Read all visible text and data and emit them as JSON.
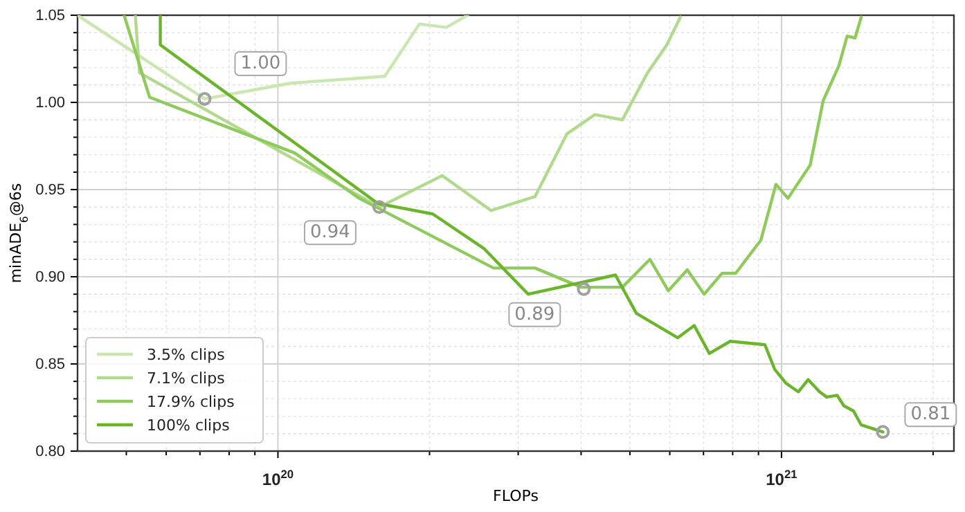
{
  "chart_data": {
    "type": "line",
    "xlabel": "FLOPs",
    "ylabel": "minADE$_{6}$@6s",
    "log": "x",
    "grid": true,
    "legend": "bottom left",
    "line_style": "solid",
    "marker": "none",
    "xlim": [
      4e+19,
      2.2e+21
    ],
    "ylim": [
      0.8,
      1.05
    ],
    "xticks": [
      {
        "value": 5e+19,
        "label": null
      },
      {
        "value": 6e+19,
        "label": null
      },
      {
        "value": 7e+19,
        "label": null
      },
      {
        "value": 8e+19,
        "label": null
      },
      {
        "value": 9e+19,
        "label": null
      },
      {
        "value": 1e+20,
        "label": "10$^{20}$"
      },
      {
        "value": 2e+20,
        "label": null
      },
      {
        "value": 3e+20,
        "label": null
      },
      {
        "value": 4e+20,
        "label": null
      },
      {
        "value": 5e+20,
        "label": null
      },
      {
        "value": 6e+20,
        "label": null
      },
      {
        "value": 7e+20,
        "label": null
      },
      {
        "value": 8e+20,
        "label": null
      },
      {
        "value": 9e+20,
        "label": null
      },
      {
        "value": 1e+21,
        "label": "10$^{21}$"
      },
      {
        "value": 2e+21,
        "label": null
      }
    ],
    "yticks": [
      {
        "value": 0.8,
        "label": "0.80"
      },
      {
        "value": 0.81,
        "label": null
      },
      {
        "value": 0.82,
        "label": null
      },
      {
        "value": 0.83,
        "label": null
      },
      {
        "value": 0.84,
        "label": null
      },
      {
        "value": 0.85,
        "label": "0.85"
      },
      {
        "value": 0.86,
        "label": null
      },
      {
        "value": 0.87,
        "label": null
      },
      {
        "value": 0.88,
        "label": null
      },
      {
        "value": 0.89,
        "label": null
      },
      {
        "value": 0.9,
        "label": "0.90"
      },
      {
        "value": 0.91,
        "label": null
      },
      {
        "value": 0.92,
        "label": null
      },
      {
        "value": 0.93,
        "label": null
      },
      {
        "value": 0.94,
        "label": null
      },
      {
        "value": 0.95,
        "label": "0.95"
      },
      {
        "value": 0.96,
        "label": null
      },
      {
        "value": 0.97,
        "label": null
      },
      {
        "value": 0.98,
        "label": null
      },
      {
        "value": 0.99,
        "label": null
      },
      {
        "value": 1.0,
        "label": "1.00"
      },
      {
        "value": 1.01,
        "label": null
      },
      {
        "value": 1.02,
        "label": null
      },
      {
        "value": 1.03,
        "label": null
      },
      {
        "value": 1.04,
        "label": null
      },
      {
        "value": 1.05,
        "label": "1.05"
      }
    ],
    "series": [
      {
        "name": "3.5% clips",
        "color": "#cce6b0",
        "x": [
          4e+19,
          7.15e+19,
          1.06e+20,
          1.63e+20,
          1.91e+20,
          2.16e+20,
          2.38e+20
        ],
        "values": [
          1.05,
          1.002,
          1.011,
          1.015,
          1.045,
          1.043,
          1.05
        ]
      },
      {
        "name": "7.1% clips",
        "color": "#b2da8c",
        "x": [
          5.21e+19,
          5.31e+19,
          1.59e+20,
          2.12e+20,
          2.65e+20,
          3.24e+20,
          3.75e+20,
          4.26e+20,
          4.83e+20,
          5.42e+20,
          5.92e+20,
          6.3e+20
        ],
        "values": [
          1.05,
          1.017,
          0.94,
          0.958,
          0.938,
          0.946,
          0.982,
          0.993,
          0.99,
          1.017,
          1.033,
          1.049
        ]
      },
      {
        "name": "17.9% clips",
        "color": "#8fca5c",
        "x": [
          4.95e+19,
          5.56e+19,
          1.08e+20,
          1.45e+20,
          2.68e+20,
          3.24e+20,
          4e+20,
          4.83e+20,
          5.48e+20,
          5.96e+20,
          6.5e+20,
          7.02e+20,
          7.62e+20,
          8.11e+20,
          9.1e+20,
          9.75e+20,
          1.03e+21,
          1.14e+21,
          1.21e+21,
          1.3e+21,
          1.35e+21,
          1.4e+21,
          1.44e+21
        ],
        "values": [
          1.05,
          1.003,
          0.971,
          0.945,
          0.905,
          0.905,
          0.894,
          0.894,
          0.91,
          0.892,
          0.904,
          0.89,
          0.902,
          0.902,
          0.921,
          0.953,
          0.945,
          0.964,
          1.001,
          1.021,
          1.038,
          1.037,
          1.049
        ]
      },
      {
        "name": "100% clips",
        "color": "#6ab52c",
        "x": [
          5.84e+19,
          5.84e+19,
          1.58e+20,
          2.03e+20,
          2.57e+20,
          3.14e+20,
          4.68e+20,
          5.15e+20,
          6.22e+20,
          6.71e+20,
          7.19e+20,
          7.91e+20,
          9.27e+20,
          9.69e+20,
          1.02e+21,
          1.08e+21,
          1.13e+21,
          1.19e+21,
          1.23e+21,
          1.29e+21,
          1.33e+21,
          1.39e+21,
          1.44e+21,
          1.59e+21
        ],
        "values": [
          1.05,
          1.033,
          0.942,
          0.936,
          0.916,
          0.89,
          0.901,
          0.879,
          0.865,
          0.872,
          0.856,
          0.863,
          0.861,
          0.847,
          0.839,
          0.834,
          0.841,
          0.834,
          0.831,
          0.832,
          0.826,
          0.823,
          0.815,
          0.811
        ]
      }
    ],
    "annotations": [
      {
        "text": "1.00",
        "x": 7.15e+19,
        "y": 1.002
      },
      {
        "text": "0.94",
        "x": 1.59e+20,
        "y": 0.94
      },
      {
        "text": "0.89",
        "x": 4.05e+20,
        "y": 0.893
      },
      {
        "text": "0.81",
        "x": 1.59e+21,
        "y": 0.811
      }
    ]
  }
}
